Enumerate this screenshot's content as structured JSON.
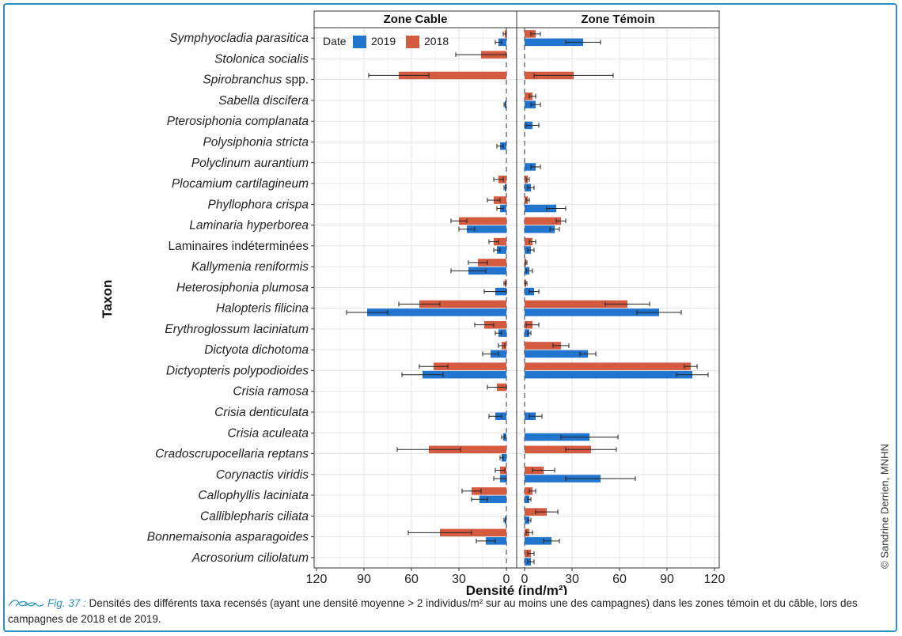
{
  "figure": {
    "credit": "© Sandrine Derrien, MNHN",
    "caption_label": "Fig. 37 :",
    "caption_text": "Densités des différents taxa recensés (ayant une densité moyenne > 2 individus/m² sur au moins une des campagnes) dans les zones témoin et du câble, lors des campagnes de 2018 et de 2019."
  },
  "colors": {
    "y2019": "#2275cf",
    "y2018": "#d45a40",
    "accent": "#2a90bf"
  },
  "chart_data": {
    "type": "bar",
    "orientation": "horizontal",
    "ylabel": "Taxon",
    "xlabel": "Densité (ind/m²)",
    "legend_title": "Date",
    "legend_position": "top-left",
    "grid": true,
    "xlim": [
      0,
      120
    ],
    "ticks": [
      "120",
      "90",
      "60",
      "30",
      "0",
      "0",
      "30",
      "60",
      "90",
      "120"
    ],
    "panels": [
      {
        "name": "Zone Cable",
        "reversed": true
      },
      {
        "name": "Zone Témoin",
        "reversed": false
      }
    ],
    "series": [
      {
        "name": "2019"
      },
      {
        "name": "2018"
      }
    ],
    "categories": [
      {
        "label": "Symphyocladia parasitica",
        "italic": true,
        "cable": {
          "v2019": 5,
          "e2019": 2,
          "v2018": 1,
          "e2018": 1
        },
        "temoin": {
          "v2019": 37,
          "e2019": 11,
          "v2018": 7,
          "e2018": 3
        }
      },
      {
        "label": "Stolonica socialis",
        "italic": true,
        "cable": {
          "v2019": 0,
          "e2019": 0,
          "v2018": 16,
          "e2018": 16
        },
        "temoin": {
          "v2019": 0,
          "e2019": 0,
          "v2018": 0,
          "e2018": 0
        }
      },
      {
        "label": "Spirobranchus spp.",
        "italic": true,
        "suffix": " spp.",
        "cable": {
          "v2019": 0,
          "e2019": 0,
          "v2018": 68,
          "e2018": 19
        },
        "temoin": {
          "v2019": 0,
          "e2019": 0,
          "v2018": 31,
          "e2018": 25
        }
      },
      {
        "label": "Sabella discifera",
        "italic": true,
        "cable": {
          "v2019": 1,
          "e2019": 0.5,
          "v2018": 0,
          "e2018": 0
        },
        "temoin": {
          "v2019": 7,
          "e2019": 3,
          "v2018": 5,
          "e2018": 2
        }
      },
      {
        "label": "Pterosiphonia complanata",
        "italic": true,
        "cable": {
          "v2019": 0,
          "e2019": 0,
          "v2018": 0,
          "e2018": 0
        },
        "temoin": {
          "v2019": 5,
          "e2019": 4,
          "v2018": 0,
          "e2018": 0
        }
      },
      {
        "label": "Polysiphonia stricta",
        "italic": true,
        "cable": {
          "v2019": 4,
          "e2019": 2,
          "v2018": 0,
          "e2018": 0
        },
        "temoin": {
          "v2019": 0,
          "e2019": 0,
          "v2018": 0,
          "e2018": 0
        }
      },
      {
        "label": "Polyclinum aurantium",
        "italic": true,
        "cable": {
          "v2019": 0,
          "e2019": 0,
          "v2018": 0,
          "e2018": 0
        },
        "temoin": {
          "v2019": 7,
          "e2019": 3,
          "v2018": 0,
          "e2018": 0
        }
      },
      {
        "label": "Plocamium cartilagineum",
        "italic": true,
        "cable": {
          "v2019": 1,
          "e2019": 0.5,
          "v2018": 5,
          "e2018": 3
        },
        "temoin": {
          "v2019": 4,
          "e2019": 2,
          "v2018": 2,
          "e2018": 1
        }
      },
      {
        "label": "Phyllophora crispa",
        "italic": true,
        "cable": {
          "v2019": 4,
          "e2019": 2,
          "v2018": 8,
          "e2018": 4
        },
        "temoin": {
          "v2019": 20,
          "e2019": 6,
          "v2018": 2,
          "e2018": 1
        }
      },
      {
        "label": "Laminaria hyperborea",
        "italic": true,
        "cable": {
          "v2019": 25,
          "e2019": 5,
          "v2018": 30,
          "e2018": 5
        },
        "temoin": {
          "v2019": 19,
          "e2019": 3,
          "v2018": 23,
          "e2018": 3
        }
      },
      {
        "label": "Laminaires indéterminées",
        "italic": false,
        "cable": {
          "v2019": 6,
          "e2019": 2,
          "v2018": 8,
          "e2018": 3
        },
        "temoin": {
          "v2019": 4,
          "e2019": 2,
          "v2018": 5,
          "e2018": 2
        }
      },
      {
        "label": "Kallymenia reniformis",
        "italic": true,
        "cable": {
          "v2019": 24,
          "e2019": 11,
          "v2018": 18,
          "e2018": 6
        },
        "temoin": {
          "v2019": 3,
          "e2019": 2,
          "v2018": 1,
          "e2018": 0.5
        }
      },
      {
        "label": "Heterosiphonia plumosa",
        "italic": true,
        "cable": {
          "v2019": 7,
          "e2019": 7,
          "v2018": 1,
          "e2018": 0.5
        },
        "temoin": {
          "v2019": 6,
          "e2019": 3,
          "v2018": 1,
          "e2018": 0.5
        }
      },
      {
        "label": "Halopteris filicina",
        "italic": true,
        "cable": {
          "v2019": 88,
          "e2019": 13,
          "v2018": 55,
          "e2018": 13
        },
        "temoin": {
          "v2019": 85,
          "e2019": 14,
          "v2018": 65,
          "e2018": 14
        }
      },
      {
        "label": "Erythroglossum laciniatum",
        "italic": true,
        "cable": {
          "v2019": 5,
          "e2019": 2,
          "v2018": 14,
          "e2018": 6
        },
        "temoin": {
          "v2019": 3,
          "e2019": 1,
          "v2018": 5,
          "e2018": 4
        }
      },
      {
        "label": "Dictyota dichotoma",
        "italic": true,
        "cable": {
          "v2019": 10,
          "e2019": 5,
          "v2018": 3,
          "e2018": 2
        },
        "temoin": {
          "v2019": 40,
          "e2019": 5,
          "v2018": 23,
          "e2018": 5
        }
      },
      {
        "label": "Dictyopteris polypodioides",
        "italic": true,
        "cable": {
          "v2019": 53,
          "e2019": 13,
          "v2018": 46,
          "e2018": 9
        },
        "temoin": {
          "v2019": 106,
          "e2019": 10,
          "v2018": 105,
          "e2018": 4
        }
      },
      {
        "label": "Crisia ramosa",
        "italic": true,
        "cable": {
          "v2019": 0,
          "e2019": 0,
          "v2018": 6,
          "e2018": 6
        },
        "temoin": {
          "v2019": 0,
          "e2019": 0,
          "v2018": 0,
          "e2018": 0
        }
      },
      {
        "label": "Crisia denticulata",
        "italic": true,
        "cable": {
          "v2019": 7,
          "e2019": 4,
          "v2018": 0,
          "e2018": 0
        },
        "temoin": {
          "v2019": 7,
          "e2019": 4,
          "v2018": 0,
          "e2018": 0
        }
      },
      {
        "label": "Crisia aculeata",
        "italic": true,
        "cable": {
          "v2019": 2,
          "e2019": 1,
          "v2018": 0,
          "e2018": 0
        },
        "temoin": {
          "v2019": 41,
          "e2019": 18,
          "v2018": 0,
          "e2018": 0
        }
      },
      {
        "label": "Cradoscrupocellaria reptans",
        "italic": true,
        "cable": {
          "v2019": 3,
          "e2019": 1,
          "v2018": 49,
          "e2018": 20
        },
        "temoin": {
          "v2019": 0,
          "e2019": 0,
          "v2018": 42,
          "e2018": 16
        }
      },
      {
        "label": "Corynactis viridis",
        "italic": true,
        "cable": {
          "v2019": 4,
          "e2019": 4,
          "v2018": 4,
          "e2018": 3
        },
        "temoin": {
          "v2019": 48,
          "e2019": 22,
          "v2018": 12,
          "e2018": 7
        }
      },
      {
        "label": "Callophyllis laciniata",
        "italic": true,
        "cable": {
          "v2019": 17,
          "e2019": 5,
          "v2018": 22,
          "e2018": 6
        },
        "temoin": {
          "v2019": 3,
          "e2019": 1,
          "v2018": 5,
          "e2018": 2
        }
      },
      {
        "label": "Calliblepharis ciliata",
        "italic": true,
        "cable": {
          "v2019": 1,
          "e2019": 0.5,
          "v2018": 0,
          "e2018": 0
        },
        "temoin": {
          "v2019": 3,
          "e2019": 1,
          "v2018": 14,
          "e2018": 7
        }
      },
      {
        "label": "Bonnemaisonia asparagoides",
        "italic": true,
        "cable": {
          "v2019": 13,
          "e2019": 6,
          "v2018": 42,
          "e2018": 20
        },
        "temoin": {
          "v2019": 17,
          "e2019": 5,
          "v2018": 3,
          "e2018": 2
        }
      },
      {
        "label": "Acrosorium ciliolatum",
        "italic": true,
        "cable": {
          "v2019": 0,
          "e2019": 0,
          "v2018": 0,
          "e2018": 0
        },
        "temoin": {
          "v2019": 4,
          "e2019": 2,
          "v2018": 4,
          "e2018": 2
        }
      }
    ]
  }
}
